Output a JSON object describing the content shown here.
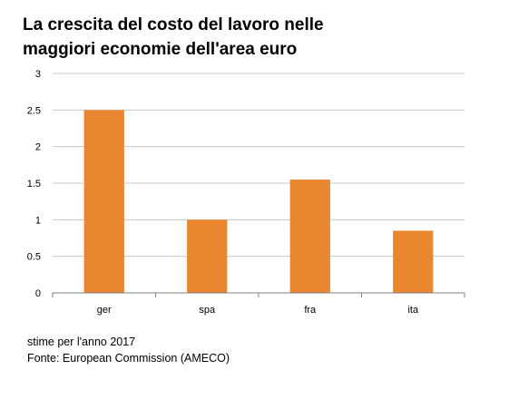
{
  "title_lines": [
    "La crescita del costo del lavoro nelle",
    "maggiori economie dell'area euro"
  ],
  "footnotes": [
    "stime per l'anno 2017",
    "Fonte: European Commission (AMECO)"
  ],
  "colors": {
    "bar": "#E8872F",
    "grid": "#c8c8c8",
    "axis": "#808080",
    "text": "#000000"
  },
  "chart_data": {
    "type": "bar",
    "title": "La crescita del costo del lavoro nelle maggiori economie dell'area euro",
    "categories": [
      "ger",
      "spa",
      "fra",
      "ita"
    ],
    "values": [
      2.5,
      1.0,
      1.55,
      0.85
    ],
    "ylim": [
      0,
      3
    ],
    "yticks": [
      0,
      0.5,
      1,
      1.5,
      2,
      2.5,
      3
    ],
    "ytick_labels": [
      "0",
      "0.5",
      "1",
      "1.5",
      "2",
      "2.5",
      "3"
    ],
    "xlabel": "",
    "ylabel": "",
    "grid": true,
    "legend": false
  }
}
